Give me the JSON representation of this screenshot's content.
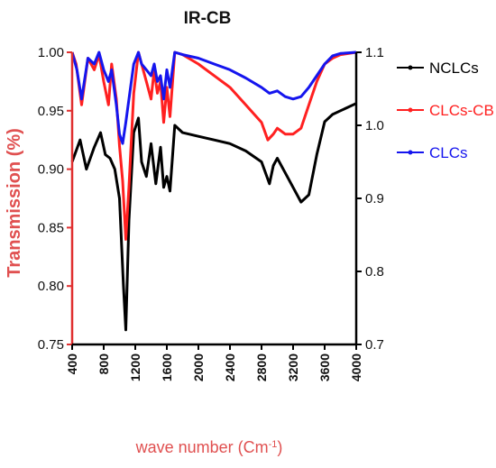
{
  "chart_data": {
    "type": "line",
    "title": "IR-CB",
    "xlabel_main": "wave number (Cm",
    "xlabel_sup": "-1",
    "xlabel_close": ")",
    "ylabel": "Transmission (%)",
    "xlim": [
      400,
      4000
    ],
    "ylim_left": [
      0.75,
      1.0
    ],
    "ylim_right": [
      0.7,
      1.1
    ],
    "x_ticks": [
      "400",
      "800",
      "1200",
      "1600",
      "2000",
      "2400",
      "2800",
      "3200",
      "3600",
      "4000"
    ],
    "y_ticks_left": [
      "0.75",
      "0.80",
      "0.85",
      "0.90",
      "0.95",
      "1.00"
    ],
    "y_ticks_right": [
      "0.7",
      "0.8",
      "0.9",
      "1.0",
      "1.1"
    ],
    "legend_position": "right",
    "colors": {
      "axis_left": "#e03030",
      "axis_other": "#000000",
      "ylabel": "#e05050",
      "xlabel": "#e05050"
    },
    "series": [
      {
        "name": "NCLCs",
        "axis": "right",
        "color": "#000000",
        "x": [
          400,
          500,
          580,
          680,
          760,
          820,
          880,
          940,
          1000,
          1050,
          1080,
          1120,
          1180,
          1240,
          1280,
          1340,
          1400,
          1460,
          1520,
          1560,
          1600,
          1640,
          1700,
          1800,
          2000,
          2200,
          2400,
          2600,
          2800,
          2900,
          2950,
          3000,
          3100,
          3200,
          3300,
          3400,
          3500,
          3600,
          3700,
          3800,
          3900,
          4000
        ],
        "y": [
          0.95,
          0.98,
          0.94,
          0.97,
          0.99,
          0.96,
          0.955,
          0.94,
          0.9,
          0.78,
          0.72,
          0.87,
          0.99,
          1.01,
          0.95,
          0.93,
          0.975,
          0.92,
          0.97,
          0.915,
          0.93,
          0.91,
          1.0,
          0.99,
          0.985,
          0.98,
          0.975,
          0.965,
          0.95,
          0.92,
          0.945,
          0.955,
          0.935,
          0.915,
          0.895,
          0.905,
          0.96,
          1.005,
          1.015,
          1.02,
          1.025,
          1.03
        ]
      },
      {
        "name": "CLCs-CB",
        "axis": "left",
        "color": "#ff2020",
        "x": [
          400,
          450,
          520,
          600,
          680,
          740,
          800,
          860,
          900,
          960,
          1000,
          1040,
          1080,
          1120,
          1180,
          1240,
          1280,
          1340,
          1400,
          1440,
          1480,
          1520,
          1560,
          1600,
          1640,
          1700,
          1800,
          2000,
          2200,
          2400,
          2600,
          2800,
          2880,
          2950,
          3000,
          3100,
          3200,
          3300,
          3400,
          3500,
          3600,
          3700,
          3800,
          4000
        ],
        "y": [
          1.0,
          0.99,
          0.955,
          0.995,
          0.985,
          0.998,
          0.975,
          0.955,
          0.99,
          0.96,
          0.92,
          0.89,
          0.84,
          0.885,
          0.965,
          1.0,
          0.99,
          0.975,
          0.96,
          0.985,
          0.965,
          0.975,
          0.94,
          0.97,
          0.945,
          1.0,
          0.998,
          0.99,
          0.98,
          0.97,
          0.955,
          0.94,
          0.925,
          0.93,
          0.935,
          0.93,
          0.93,
          0.935,
          0.955,
          0.975,
          0.99,
          0.995,
          0.998,
          1.0
        ]
      },
      {
        "name": "CLCs",
        "axis": "left",
        "color": "#1515ee",
        "x": [
          400,
          460,
          520,
          600,
          680,
          740,
          800,
          860,
          900,
          960,
          1000,
          1040,
          1080,
          1120,
          1180,
          1240,
          1280,
          1340,
          1400,
          1440,
          1480,
          1520,
          1560,
          1600,
          1640,
          1700,
          1800,
          2000,
          2200,
          2400,
          2600,
          2800,
          2900,
          3000,
          3100,
          3200,
          3300,
          3400,
          3500,
          3600,
          3700,
          3800,
          4000
        ],
        "y": [
          1.0,
          0.985,
          0.96,
          0.995,
          0.99,
          1.0,
          0.985,
          0.975,
          0.985,
          0.955,
          0.93,
          0.922,
          0.94,
          0.96,
          0.99,
          1.0,
          0.99,
          0.985,
          0.98,
          0.99,
          0.975,
          0.98,
          0.96,
          0.985,
          0.97,
          1.0,
          0.998,
          0.995,
          0.99,
          0.985,
          0.978,
          0.97,
          0.965,
          0.967,
          0.962,
          0.96,
          0.962,
          0.97,
          0.98,
          0.99,
          0.997,
          0.999,
          1.0
        ]
      }
    ]
  }
}
